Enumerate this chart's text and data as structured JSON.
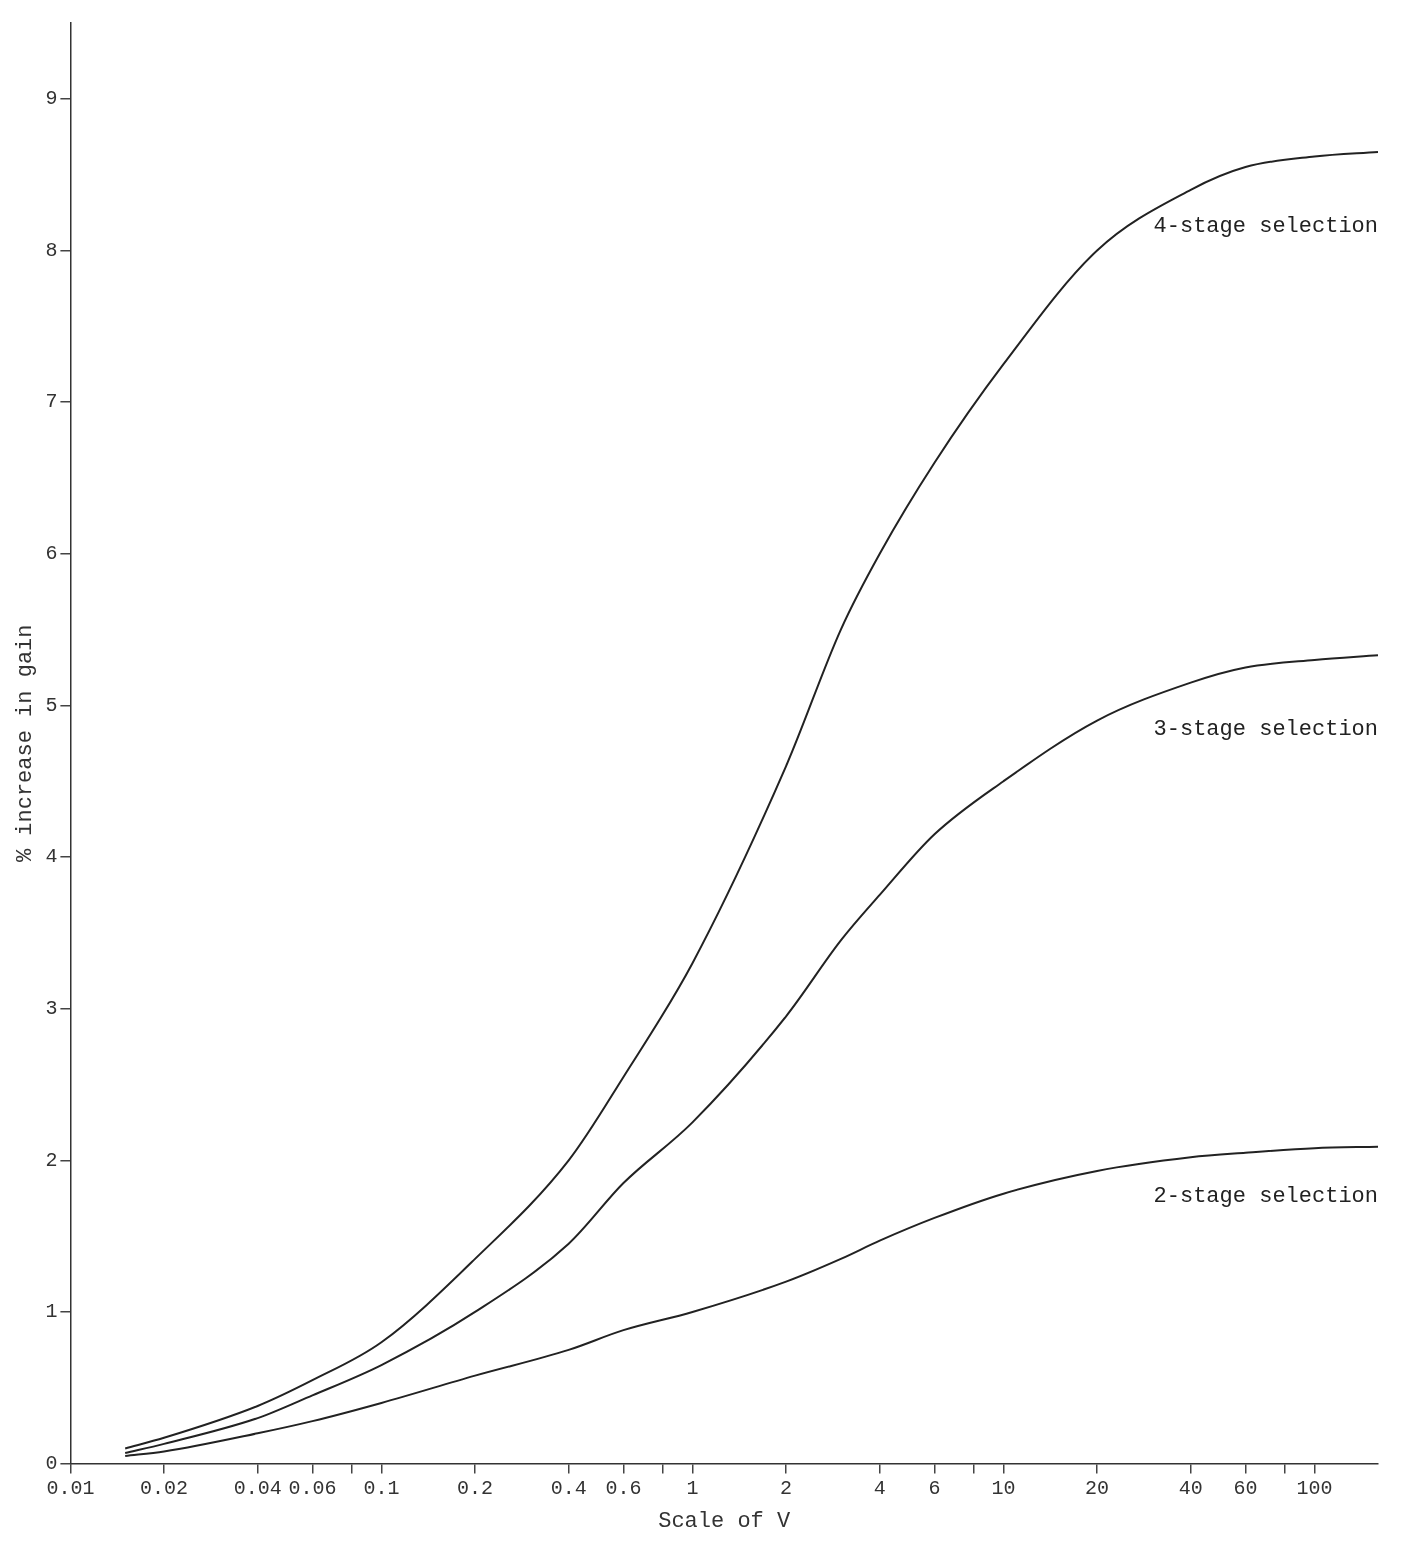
{
  "chart_data": {
    "type": "line",
    "xlabel": "Scale of V",
    "ylabel": "% increase in gain",
    "log": "x",
    "xlim": [
      0.01,
      160
    ],
    "ylim": [
      0,
      9.5
    ],
    "xticks": [
      0.01,
      0.02,
      0.04,
      0.06,
      {
        "value": 0.08,
        "label": null
      },
      0.1,
      0.2,
      0.4,
      0.6,
      {
        "value": 0.8,
        "label": null
      },
      1,
      2,
      4,
      6,
      {
        "value": 8,
        "label": null
      },
      10,
      20,
      40,
      60,
      {
        "value": 80,
        "label": null
      },
      100
    ],
    "yticks": [
      0,
      1,
      2,
      3,
      4,
      5,
      6,
      7,
      8,
      9
    ],
    "grid": false,
    "legend": false,
    "marker": "none",
    "line_style": "solid",
    "x": [
      0.015,
      0.02,
      0.04,
      0.06,
      0.1,
      0.2,
      0.4,
      0.6,
      1,
      2,
      3,
      4,
      6,
      10,
      20,
      40,
      60,
      100,
      160
    ],
    "series": [
      {
        "name": "4-stage selection",
        "color": "#222222",
        "values": [
          0.1,
          0.17,
          0.38,
          0.55,
          0.8,
          1.35,
          2.0,
          2.55,
          3.3,
          4.6,
          5.5,
          6.0,
          6.6,
          7.25,
          8.0,
          8.4,
          8.55,
          8.62,
          8.65
        ]
      },
      {
        "name": "3-stage selection",
        "color": "#222222",
        "values": [
          0.07,
          0.13,
          0.3,
          0.45,
          0.65,
          1.0,
          1.45,
          1.85,
          2.25,
          2.95,
          3.45,
          3.75,
          4.15,
          4.5,
          4.9,
          5.15,
          5.25,
          5.3,
          5.33
        ]
      },
      {
        "name": "2-stage selection",
        "color": "#222222",
        "values": [
          0.05,
          0.08,
          0.2,
          0.28,
          0.4,
          0.58,
          0.75,
          0.88,
          1.0,
          1.2,
          1.35,
          1.47,
          1.62,
          1.78,
          1.93,
          2.02,
          2.05,
          2.08,
          2.09
        ]
      }
    ]
  }
}
